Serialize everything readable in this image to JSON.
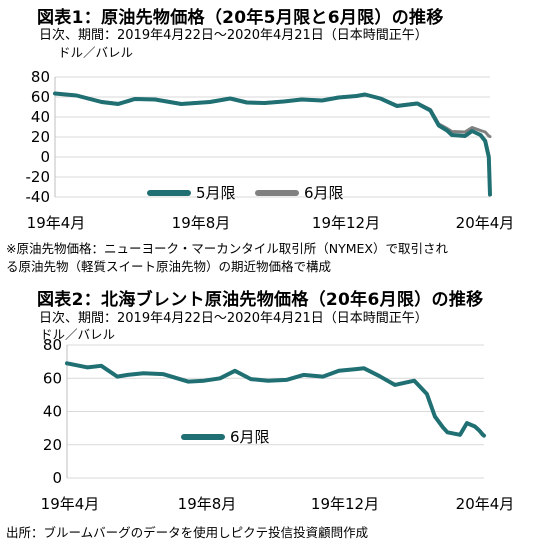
{
  "figure1": {
    "title": "図表1：原油先物価格（20年5月限と6月限）の推移",
    "subtitle": "日次、期間：2019年4月22日～2020年4月21日（日本時間正午）",
    "unit": "ドル／バレル",
    "note_line1": "※原油先物価格：ニューヨーク・マーカンタイル取引所（NYMEX）で取引され",
    "note_line2": "る原油先物（軽質スイート原油先物）の期近物価格で構成"
  },
  "figure2": {
    "title": "図表2：北海ブレント原油先物価格（20年6月限）の推移",
    "subtitle": "日次、期間：2019年4月22日～2020年4月21日（日本時間正午）",
    "unit": "ドル／バレル"
  },
  "source": "出所：ブルームバーグのデータを使用しピクテ投信投資顧問作成",
  "colors": {
    "may_contract": "#1f6f73",
    "june_contract_fig1": "#808080",
    "june_contract_fig2": "#1f6f73",
    "grid": "#d9d9d9"
  },
  "chart_data": [
    {
      "type": "line",
      "categories": [
        "19年4月",
        "19年8月",
        "19年12月",
        "20年4月"
      ],
      "x_range": [
        "2019-04-22",
        "2020-04-21"
      ],
      "ylim": [
        -40,
        80
      ],
      "yticks": [
        80,
        60,
        40,
        20,
        0,
        -20,
        -40
      ],
      "legend_position": "bottom-left",
      "series": [
        {
          "name": "5月限",
          "color": "#1f6f73",
          "points": [
            [
              "2019-04-22",
              63.5
            ],
            [
              "2019-05-10",
              61.5
            ],
            [
              "2019-05-31",
              55.0
            ],
            [
              "2019-06-14",
              53.0
            ],
            [
              "2019-06-28",
              58.0
            ],
            [
              "2019-07-15",
              57.5
            ],
            [
              "2019-08-06",
              53.0
            ],
            [
              "2019-08-30",
              55.0
            ],
            [
              "2019-09-16",
              58.5
            ],
            [
              "2019-09-30",
              54.5
            ],
            [
              "2019-10-15",
              54.0
            ],
            [
              "2019-10-31",
              55.5
            ],
            [
              "2019-11-15",
              57.5
            ],
            [
              "2019-12-02",
              56.5
            ],
            [
              "2019-12-16",
              59.5
            ],
            [
              "2019-12-31",
              61.0
            ],
            [
              "2020-01-07",
              62.5
            ],
            [
              "2020-01-20",
              58.5
            ],
            [
              "2020-02-03",
              51.0
            ],
            [
              "2020-02-20",
              53.5
            ],
            [
              "2020-03-02",
              46.5
            ],
            [
              "2020-03-09",
              31.5
            ],
            [
              "2020-03-16",
              26.5
            ],
            [
              "2020-03-20",
              22.0
            ],
            [
              "2020-03-31",
              21.0
            ],
            [
              "2020-04-06",
              26.0
            ],
            [
              "2020-04-13",
              22.0
            ],
            [
              "2020-04-17",
              16.0
            ],
            [
              "2020-04-20",
              0.0
            ],
            [
              "2020-04-21",
              -37.6
            ]
          ]
        },
        {
          "name": "6月限",
          "color": "#808080",
          "points": [
            [
              "2019-04-22",
              63.7
            ],
            [
              "2019-05-10",
              61.8
            ],
            [
              "2019-05-31",
              55.5
            ],
            [
              "2019-06-14",
              53.5
            ],
            [
              "2019-06-28",
              58.3
            ],
            [
              "2019-07-15",
              57.8
            ],
            [
              "2019-08-06",
              53.4
            ],
            [
              "2019-08-30",
              55.3
            ],
            [
              "2019-09-16",
              58.8
            ],
            [
              "2019-09-30",
              54.8
            ],
            [
              "2019-10-15",
              54.4
            ],
            [
              "2019-10-31",
              55.8
            ],
            [
              "2019-11-15",
              57.8
            ],
            [
              "2019-12-02",
              56.8
            ],
            [
              "2019-12-16",
              59.7
            ],
            [
              "2019-12-31",
              61.2
            ],
            [
              "2020-01-07",
              62.7
            ],
            [
              "2020-01-20",
              58.8
            ],
            [
              "2020-02-03",
              51.5
            ],
            [
              "2020-02-20",
              54.0
            ],
            [
              "2020-03-02",
              47.5
            ],
            [
              "2020-03-09",
              33.0
            ],
            [
              "2020-03-16",
              28.5
            ],
            [
              "2020-03-20",
              25.5
            ],
            [
              "2020-03-31",
              25.0
            ],
            [
              "2020-04-06",
              29.5
            ],
            [
              "2020-04-13",
              26.5
            ],
            [
              "2020-04-17",
              25.0
            ],
            [
              "2020-04-20",
              21.0
            ],
            [
              "2020-04-21",
              20.4
            ]
          ]
        }
      ]
    },
    {
      "type": "line",
      "categories": [
        "19年4月",
        "19年8月",
        "19年12月",
        "20年4月"
      ],
      "x_range": [
        "2019-04-22",
        "2020-04-21"
      ],
      "ylim": [
        0,
        80
      ],
      "yticks": [
        80,
        60,
        40,
        20,
        0
      ],
      "legend_position": "bottom-left",
      "series": [
        {
          "name": "6月限",
          "color": "#1f6f73",
          "points": [
            [
              "2019-04-22",
              69.0
            ],
            [
              "2019-05-10",
              66.5
            ],
            [
              "2019-05-22",
              67.5
            ],
            [
              "2019-06-05",
              61.0
            ],
            [
              "2019-06-14",
              62.0
            ],
            [
              "2019-06-28",
              63.0
            ],
            [
              "2019-07-15",
              62.5
            ],
            [
              "2019-08-06",
              58.0
            ],
            [
              "2019-08-20",
              58.5
            ],
            [
              "2019-09-03",
              60.0
            ],
            [
              "2019-09-16",
              64.5
            ],
            [
              "2019-09-30",
              59.5
            ],
            [
              "2019-10-15",
              58.5
            ],
            [
              "2019-10-31",
              59.0
            ],
            [
              "2019-11-15",
              62.0
            ],
            [
              "2019-12-02",
              61.0
            ],
            [
              "2019-12-16",
              64.5
            ],
            [
              "2019-12-31",
              65.5
            ],
            [
              "2020-01-07",
              66.0
            ],
            [
              "2020-01-20",
              61.5
            ],
            [
              "2020-02-03",
              56.0
            ],
            [
              "2020-02-20",
              58.5
            ],
            [
              "2020-03-02",
              50.5
            ],
            [
              "2020-03-09",
              37.0
            ],
            [
              "2020-03-16",
              30.5
            ],
            [
              "2020-03-20",
              27.5
            ],
            [
              "2020-03-31",
              26.0
            ],
            [
              "2020-04-06",
              33.0
            ],
            [
              "2020-04-13",
              31.0
            ],
            [
              "2020-04-17",
              28.5
            ],
            [
              "2020-04-20",
              26.0
            ],
            [
              "2020-04-21",
              25.5
            ]
          ]
        }
      ]
    }
  ]
}
